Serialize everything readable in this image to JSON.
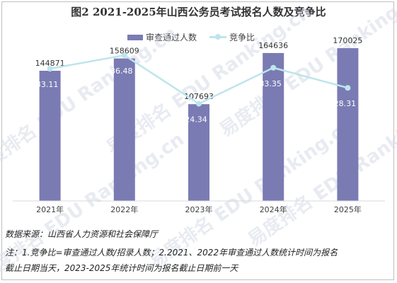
{
  "chart_data": {
    "type": "bar",
    "title": "图2 2021-2025年山西公务员考试报名人数及竞争比",
    "categories": [
      "2021年",
      "2022年",
      "2023年",
      "2024年",
      "2025年"
    ],
    "series": [
      {
        "name": "审查通过人数",
        "type": "bar",
        "values": [
          144871,
          158609,
          107693,
          164636,
          170025
        ],
        "color": "#7a7bb3"
      },
      {
        "name": "竞争比",
        "type": "line",
        "values": [
          33.11,
          36.48,
          24.34,
          33.35,
          28.31
        ],
        "color": "#bde5ec"
      }
    ],
    "bar_ylim": [
      0,
      200000
    ],
    "line_ylim": [
      0,
      45
    ],
    "legend_position": "top-right",
    "grid": false
  },
  "source": "数据来源：山西省人力资源和社会保障厅",
  "note_line1": "注：1.竞争比=审查通过人数/招录人数；2.2021、2022年审查通过人数统计时间为报名",
  "note_line2": "截止日期当天，2023-2025年统计时间为报名截止日期前一天",
  "watermark": "易度排名 EDU Ranking.cn"
}
